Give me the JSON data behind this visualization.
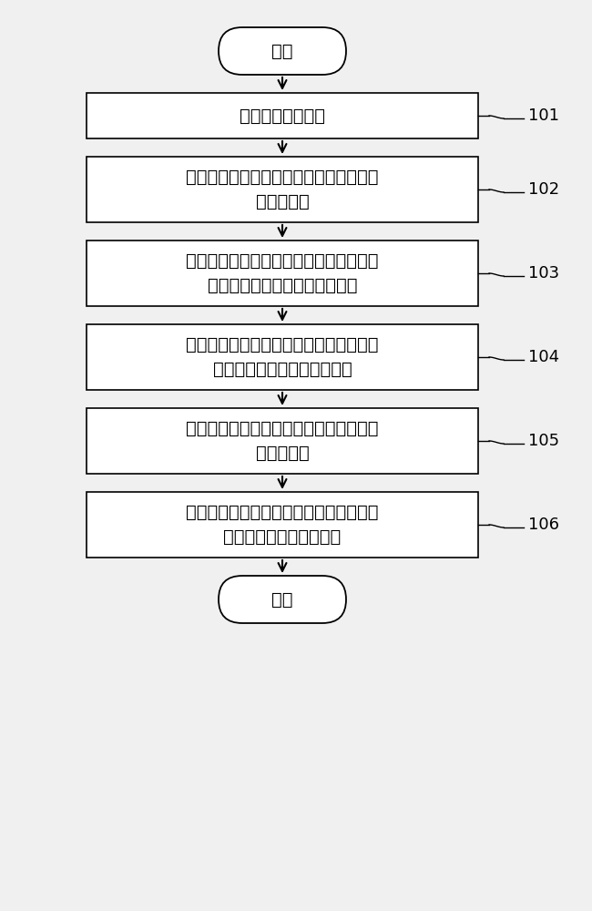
{
  "background_color": "#f0f0f0",
  "start_label": "开始",
  "end_label": "结束",
  "boxes": [
    {
      "lines": [
        "将地下模型网格化"
      ],
      "tag": "101",
      "double": false
    },
    {
      "lines": [
        "计算一个网格中微震信号到达各个检波器",
        "的到达时刻"
      ],
      "tag": "102",
      "double": true
    },
    {
      "lines": [
        "将与各个检波器的到达时刻对应的有效波",
        "的振幅相加，从而获得叠加能量"
      ],
      "tag": "103",
      "double": true
    },
    {
      "lines": [
        "获得不同时刻下的叠加能量，并将叠加能",
        "量中的最大值归位到指定网格"
      ],
      "tag": "104",
      "double": true
    },
    {
      "lines": [
        "针对每个网格重复操作以获得所有网格的",
        "最终能量谱"
      ],
      "tag": "105",
      "double": true
    },
    {
      "lines": [
        "基于预先设置的阈值对最终能量谱过滤，",
        "从而得到微震有效事件点"
      ],
      "tag": "106",
      "double": true
    }
  ],
  "box_color": "#ffffff",
  "box_edge_color": "#000000",
  "arrow_color": "#000000",
  "text_color": "#000000",
  "tag_color": "#000000",
  "font_size": 14,
  "tag_font_size": 13
}
